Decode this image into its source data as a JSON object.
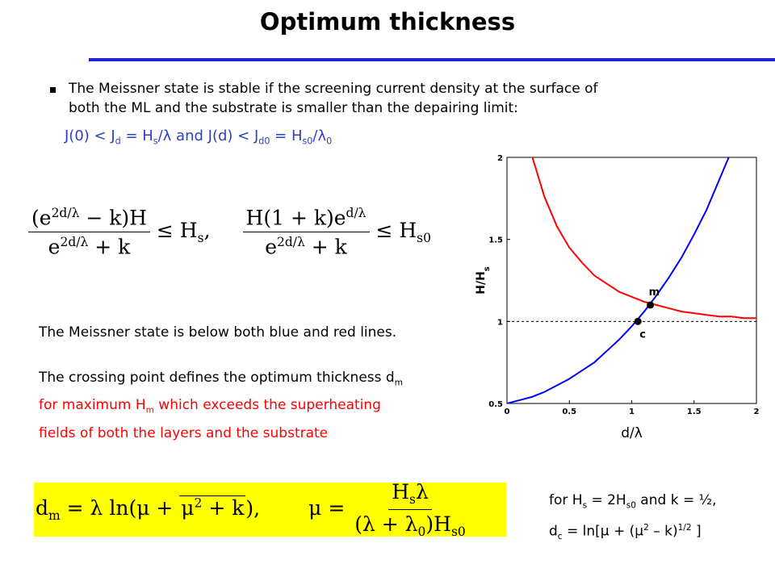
{
  "title": "Optimum thickness",
  "bullet": [
    "The Meissner state is stable if the screening current density at the surface of",
    "both the ML and the substrate is smaller than the depairing limit:"
  ],
  "condition": [
    "J(0) < J",
    {
      "t": "d",
      "s": "sub"
    },
    " = H",
    {
      "t": "s",
      "s": "sub"
    },
    "/λ and J(d) < J",
    {
      "t": "d0",
      "s": "sub"
    },
    " = H",
    {
      "t": "s0",
      "s": "sub"
    },
    "/λ",
    {
      "t": "0",
      "s": "sub"
    }
  ],
  "formulas": [
    {
      "numerator": [
        "(e",
        {
          "t": "2d/λ",
          "s": "sup"
        },
        " − k)H"
      ],
      "denominator": [
        "e",
        {
          "t": "2d/λ",
          "s": "sup"
        },
        " + k"
      ],
      "rhs": [
        "≤ H",
        {
          "t": "s",
          "s": "sub"
        },
        ","
      ]
    },
    {
      "numerator": [
        "H(1 + k)e",
        {
          "t": "d/λ",
          "s": "sup"
        }
      ],
      "denominator": [
        "e",
        {
          "t": "2d/λ",
          "s": "sup"
        },
        " + k"
      ],
      "rhs": [
        "≤ H",
        {
          "t": "s0",
          "s": "sub"
        }
      ]
    }
  ],
  "notes": [
    {
      "runs": [
        "The Meissner state is below both blue and red lines."
      ],
      "color": "#000000"
    },
    {
      "runs": [
        "The crossing point defines the optimum thickness d",
        {
          "t": "m",
          "s": "sub"
        }
      ],
      "color": "#000000"
    },
    {
      "runs": [
        "for maximum H",
        {
          "t": "m",
          "s": "sub"
        },
        " which exceeds the superheating"
      ],
      "color": "#ff0000"
    },
    {
      "runs": [
        "fields of both the layers and the substrate"
      ],
      "color": "#ff0000"
    }
  ],
  "result": {
    "dm_before": [
      "d",
      {
        "t": "m",
        "s": "sub"
      },
      " = λ ln(μ + "
    ],
    "dm_radicand": [
      "μ",
      {
        "t": "2",
        "s": "sup"
      },
      " + k"
    ],
    "dm_after": "),",
    "mu_lhs": "μ =",
    "mu_numerator": [
      "H",
      {
        "t": "s",
        "s": "sub"
      },
      "λ"
    ],
    "mu_denominator": [
      "(λ + λ",
      {
        "t": "0",
        "s": "sub"
      },
      ")H",
      {
        "t": "s0",
        "s": "sub"
      }
    ]
  },
  "footnote": [
    [
      "for H",
      {
        "t": "s",
        "s": "sub"
      },
      " = 2H",
      {
        "t": "s0",
        "s": "sub"
      },
      " and k = ½,"
    ],
    [
      "d",
      {
        "t": "c",
        "s": "sub"
      },
      " = ln[μ + (μ",
      {
        "t": "2",
        "s": "sup"
      },
      " – k)",
      {
        "t": "1/2",
        "s": "sup"
      },
      " ]"
    ]
  ],
  "chart_data": {
    "type": "line",
    "xlabel": "d/λ",
    "ylabel": [
      "H/H",
      {
        "t": "s",
        "s": "sub"
      }
    ],
    "x": [
      0,
      0.1,
      0.2,
      0.3,
      0.4,
      0.5,
      0.6,
      0.7,
      0.8,
      0.9,
      1.0,
      1.1,
      1.2,
      1.3,
      1.4,
      1.5,
      1.6,
      1.7,
      1.8,
      1.9,
      2.0
    ],
    "series": [
      {
        "color": "#ff0000",
        "values": [
          null,
          null,
          2.01,
          1.76,
          1.58,
          1.45,
          1.36,
          1.28,
          1.23,
          1.18,
          1.15,
          1.12,
          1.1,
          1.08,
          1.06,
          1.05,
          1.04,
          1.03,
          1.03,
          1.02,
          1.02
        ]
      },
      {
        "color": "#0000ff",
        "values": [
          0.5,
          0.52,
          0.54,
          0.57,
          0.61,
          0.65,
          0.7,
          0.75,
          0.82,
          0.89,
          0.97,
          1.06,
          1.16,
          1.27,
          1.39,
          1.53,
          1.68,
          1.86,
          2.04,
          null,
          null
        ]
      }
    ],
    "points": [
      {
        "x": 1.15,
        "y": 1.1,
        "label": "m"
      },
      {
        "x": 1.05,
        "y": 1.0,
        "label": "c"
      }
    ],
    "hline": 1,
    "xlim": [
      0,
      2
    ],
    "ylim": [
      0.5,
      2
    ],
    "xticks": [
      0,
      0.5,
      1,
      1.5,
      2
    ],
    "yticks": [
      0.5,
      1,
      1.5,
      2
    ]
  }
}
